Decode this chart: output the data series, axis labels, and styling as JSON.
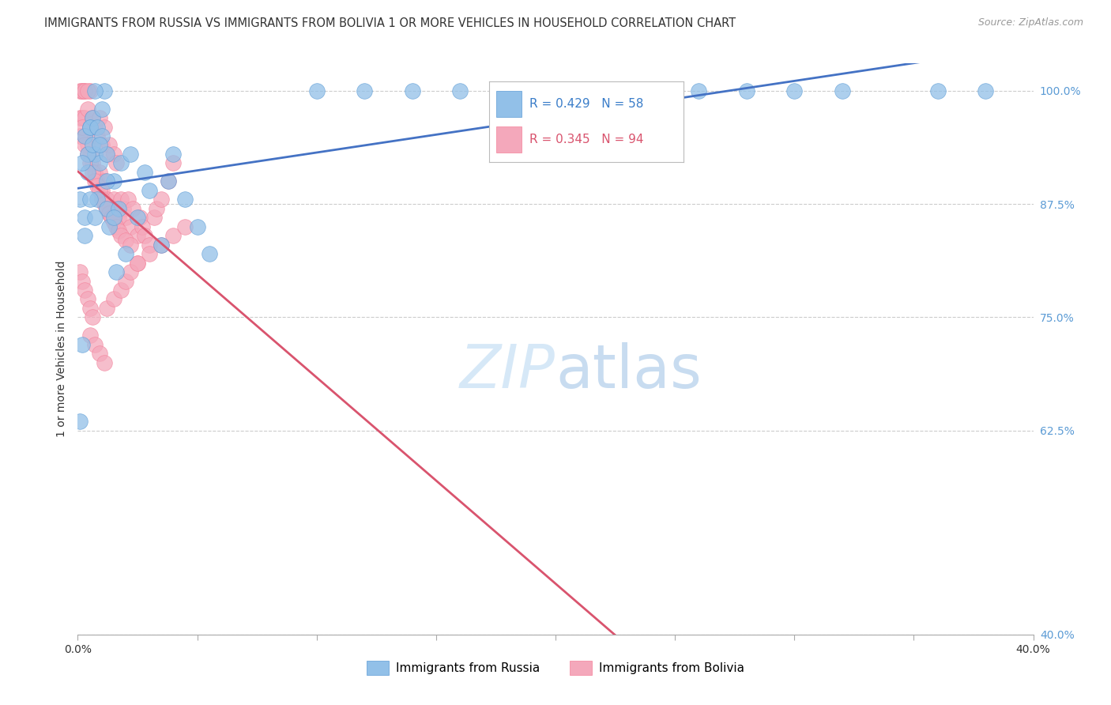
{
  "title": "IMMIGRANTS FROM RUSSIA VS IMMIGRANTS FROM BOLIVIA 1 OR MORE VEHICLES IN HOUSEHOLD CORRELATION CHART",
  "source": "Source: ZipAtlas.com",
  "ylabel": "1 or more Vehicles in Household",
  "xlim": [
    0.0,
    0.4
  ],
  "ylim": [
    0.4,
    1.03
  ],
  "xtick_values": [
    0.0,
    0.05,
    0.1,
    0.15,
    0.2,
    0.25,
    0.3,
    0.35,
    0.4
  ],
  "xtick_show": [
    0.0,
    0.4
  ],
  "ytick_values": [
    0.4,
    0.625,
    0.75,
    0.875,
    1.0
  ],
  "ytick_labels": [
    "40.0%",
    "62.5%",
    "75.0%",
    "87.5%",
    "100.0%"
  ],
  "russia_color": "#92C0E8",
  "bolivia_color": "#F4A8BB",
  "russia_edge_color": "#5B9BD5",
  "bolivia_edge_color": "#F48099",
  "russia_line_color": "#4472C4",
  "bolivia_line_color": "#D9546E",
  "russia_R": 0.429,
  "russia_N": 58,
  "bolivia_R": 0.345,
  "bolivia_N": 94,
  "legend_russia": "Immigrants from Russia",
  "legend_bolivia": "Immigrants from Bolivia",
  "russia_x": [
    0.001,
    0.002,
    0.003,
    0.004,
    0.005,
    0.006,
    0.007,
    0.008,
    0.009,
    0.01,
    0.011,
    0.012,
    0.013,
    0.015,
    0.016,
    0.017,
    0.018,
    0.02,
    0.022,
    0.025,
    0.028,
    0.03,
    0.035,
    0.038,
    0.04,
    0.045,
    0.05,
    0.055,
    0.003,
    0.004,
    0.005,
    0.006,
    0.007,
    0.008,
    0.01,
    0.012,
    0.001,
    0.002,
    0.003,
    0.005,
    0.007,
    0.009,
    0.012,
    0.015,
    0.38,
    0.36,
    0.32,
    0.3,
    0.28,
    0.26,
    0.24,
    0.22,
    0.2,
    0.18,
    0.16,
    0.14,
    0.12,
    0.1
  ],
  "russia_y": [
    0.635,
    0.72,
    0.84,
    0.91,
    0.96,
    0.97,
    0.93,
    0.88,
    0.92,
    0.98,
    1.0,
    0.87,
    0.85,
    0.9,
    0.8,
    0.87,
    0.92,
    0.82,
    0.93,
    0.86,
    0.91,
    0.89,
    0.83,
    0.9,
    0.93,
    0.88,
    0.85,
    0.82,
    0.95,
    0.93,
    0.96,
    0.94,
    1.0,
    0.96,
    0.95,
    0.93,
    0.88,
    0.92,
    0.86,
    0.88,
    0.86,
    0.94,
    0.9,
    0.86,
    1.0,
    1.0,
    1.0,
    1.0,
    1.0,
    1.0,
    1.0,
    1.0,
    1.0,
    1.0,
    1.0,
    1.0,
    1.0,
    1.0
  ],
  "bolivia_x": [
    0.001,
    0.001,
    0.002,
    0.002,
    0.003,
    0.003,
    0.003,
    0.004,
    0.004,
    0.005,
    0.005,
    0.005,
    0.006,
    0.006,
    0.007,
    0.007,
    0.008,
    0.008,
    0.009,
    0.009,
    0.01,
    0.01,
    0.011,
    0.011,
    0.012,
    0.012,
    0.013,
    0.013,
    0.014,
    0.015,
    0.015,
    0.016,
    0.016,
    0.017,
    0.018,
    0.019,
    0.02,
    0.021,
    0.022,
    0.023,
    0.025,
    0.026,
    0.027,
    0.028,
    0.03,
    0.032,
    0.033,
    0.035,
    0.038,
    0.04,
    0.001,
    0.002,
    0.003,
    0.004,
    0.005,
    0.006,
    0.007,
    0.008,
    0.009,
    0.01,
    0.011,
    0.012,
    0.013,
    0.014,
    0.015,
    0.016,
    0.017,
    0.018,
    0.02,
    0.022,
    0.001,
    0.002,
    0.003,
    0.004,
    0.005,
    0.006,
    0.002,
    0.003,
    0.004,
    0.025,
    0.012,
    0.015,
    0.018,
    0.02,
    0.022,
    0.025,
    0.03,
    0.035,
    0.04,
    0.045,
    0.005,
    0.007,
    0.009,
    0.011
  ],
  "bolivia_y": [
    0.97,
    1.0,
    0.97,
    1.0,
    0.95,
    0.97,
    1.0,
    0.94,
    0.98,
    0.93,
    0.96,
    1.0,
    0.92,
    0.97,
    0.91,
    0.96,
    0.9,
    0.95,
    0.91,
    0.97,
    0.89,
    0.94,
    0.9,
    0.96,
    0.88,
    0.93,
    0.87,
    0.94,
    0.86,
    0.88,
    0.93,
    0.87,
    0.92,
    0.86,
    0.88,
    0.87,
    0.86,
    0.88,
    0.85,
    0.87,
    0.84,
    0.86,
    0.85,
    0.84,
    0.83,
    0.86,
    0.87,
    0.88,
    0.9,
    0.92,
    0.95,
    0.96,
    0.94,
    0.93,
    0.92,
    0.91,
    0.9,
    0.895,
    0.89,
    0.88,
    0.875,
    0.87,
    0.865,
    0.86,
    0.855,
    0.85,
    0.845,
    0.84,
    0.835,
    0.83,
    0.8,
    0.79,
    0.78,
    0.77,
    0.76,
    0.75,
    1.0,
    1.0,
    1.0,
    0.81,
    0.76,
    0.77,
    0.78,
    0.79,
    0.8,
    0.81,
    0.82,
    0.83,
    0.84,
    0.85,
    0.73,
    0.72,
    0.71,
    0.7
  ],
  "watermark_color": "#D6E8F7",
  "background_color": "#ffffff",
  "grid_color": "#CCCCCC",
  "title_fontsize": 10.5,
  "axis_label_fontsize": 10,
  "tick_fontsize": 10,
  "legend_fontsize": 11
}
